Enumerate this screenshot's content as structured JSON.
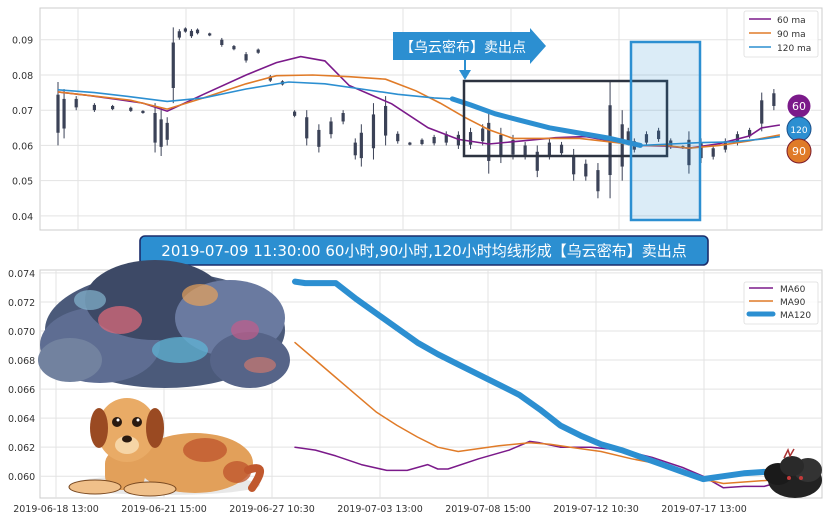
{
  "chart_data": [
    {
      "type": "candlestick",
      "title": "",
      "xlabel": "",
      "ylabel": "",
      "ylim": [
        0.036,
        0.099
      ],
      "y_ticks": [
        "0.04",
        "0.05",
        "0.06",
        "0.07",
        "0.08",
        "0.09"
      ],
      "grid": true,
      "legend": {
        "position": "top-right",
        "entries": [
          "60 ma",
          "90 ma",
          "120 ma"
        ]
      },
      "series": [
        {
          "name": "60 ma",
          "color": "#7b1a8a",
          "points": [
            [
              0,
              0.0752
            ],
            [
              5,
              0.0742
            ],
            [
              10,
              0.073
            ],
            [
              14,
              0.072
            ],
            [
              18,
              0.0697
            ],
            [
              24,
              0.0745
            ],
            [
              31,
              0.08
            ],
            [
              36,
              0.0835
            ],
            [
              40,
              0.0852
            ],
            [
              44,
              0.084
            ],
            [
              48,
              0.077
            ],
            [
              55,
              0.0718
            ],
            [
              61,
              0.065
            ],
            [
              66,
              0.0617
            ],
            [
              71,
              0.0604
            ],
            [
              76,
              0.0612
            ],
            [
              82,
              0.0622
            ],
            [
              87,
              0.0625
            ],
            [
              92,
              0.061
            ],
            [
              96,
              0.06
            ],
            [
              100,
              0.0598
            ],
            [
              104,
              0.0592
            ],
            [
              109,
              0.0605
            ],
            [
              114,
              0.0627
            ],
            [
              116,
              0.065
            ],
            [
              119,
              0.0658
            ]
          ]
        },
        {
          "name": "90 ma",
          "color": "#e07b28",
          "points": [
            [
              0,
              0.0752
            ],
            [
              6,
              0.074
            ],
            [
              12,
              0.0728
            ],
            [
              18,
              0.0703
            ],
            [
              24,
              0.0735
            ],
            [
              31,
              0.0775
            ],
            [
              36,
              0.0798
            ],
            [
              42,
              0.08
            ],
            [
              48,
              0.0795
            ],
            [
              54,
              0.0788
            ],
            [
              59,
              0.0755
            ],
            [
              63,
              0.072
            ],
            [
              67,
              0.068
            ],
            [
              71,
              0.0645
            ],
            [
              75,
              0.062
            ],
            [
              80,
              0.062
            ],
            [
              86,
              0.062
            ],
            [
              92,
              0.0608
            ],
            [
              96,
              0.06
            ],
            [
              100,
              0.06
            ],
            [
              104,
              0.0592
            ],
            [
              109,
              0.06
            ],
            [
              114,
              0.0613
            ],
            [
              116,
              0.062
            ],
            [
              119,
              0.063
            ]
          ]
        },
        {
          "name": "120 ma",
          "color": "#2c8fd1",
          "points": [
            [
              0,
              0.0758
            ],
            [
              6,
              0.075
            ],
            [
              12,
              0.0738
            ],
            [
              18,
              0.0725
            ],
            [
              24,
              0.0735
            ],
            [
              31,
              0.076
            ],
            [
              38,
              0.078
            ],
            [
              44,
              0.0775
            ],
            [
              50,
              0.076
            ],
            [
              56,
              0.0745
            ],
            [
              62,
              0.0735
            ],
            [
              65,
              0.0732
            ],
            [
              68,
              0.0715
            ],
            [
              72,
              0.069
            ],
            [
              76,
              0.0672
            ],
            [
              81,
              0.065
            ],
            [
              86,
              0.0635
            ],
            [
              91,
              0.062
            ],
            [
              96,
              0.06
            ],
            [
              101,
              0.0604
            ],
            [
              106,
              0.0608
            ],
            [
              111,
              0.061
            ],
            [
              116,
              0.0618
            ],
            [
              119,
              0.0625
            ]
          ]
        }
      ],
      "candles": [
        [
          0,
          0.078,
          0.06
        ],
        [
          1,
          0.076,
          0.062
        ],
        [
          3,
          0.074,
          0.07
        ],
        [
          6,
          0.072,
          0.0695
        ],
        [
          9,
          0.0715,
          0.07
        ],
        [
          12,
          0.071,
          0.0695
        ],
        [
          14,
          0.07,
          0.069
        ],
        [
          16,
          0.072,
          0.058
        ],
        [
          17,
          0.07,
          0.057
        ],
        [
          18,
          0.068,
          0.06
        ],
        [
          19,
          0.0935,
          0.072
        ],
        [
          20,
          0.093,
          0.09
        ],
        [
          21,
          0.0935,
          0.092
        ],
        [
          22,
          0.093,
          0.0905
        ],
        [
          23,
          0.0932,
          0.0915
        ],
        [
          25,
          0.092,
          0.091
        ],
        [
          27,
          0.0905,
          0.088
        ],
        [
          29,
          0.0885,
          0.087
        ],
        [
          31,
          0.0865,
          0.0835
        ],
        [
          33,
          0.0875,
          0.086
        ],
        [
          35,
          0.08,
          0.078
        ],
        [
          37,
          0.0785,
          0.077
        ],
        [
          39,
          0.07,
          0.068
        ],
        [
          41,
          0.07,
          0.06
        ],
        [
          43,
          0.066,
          0.058
        ],
        [
          45,
          0.068,
          0.062
        ],
        [
          47,
          0.07,
          0.066
        ],
        [
          49,
          0.062,
          0.056
        ],
        [
          50,
          0.066,
          0.054
        ],
        [
          52,
          0.072,
          0.056
        ],
        [
          54,
          0.074,
          0.06
        ],
        [
          56,
          0.064,
          0.0605
        ],
        [
          58,
          0.061,
          0.06
        ],
        [
          60,
          0.062,
          0.06
        ],
        [
          62,
          0.063,
          0.06
        ],
        [
          64,
          0.064,
          0.06
        ],
        [
          66,
          0.064,
          0.059
        ],
        [
          68,
          0.065,
          0.059
        ],
        [
          70,
          0.066,
          0.06
        ],
        [
          71,
          0.07,
          0.052
        ],
        [
          73,
          0.065,
          0.055
        ],
        [
          75,
          0.063,
          0.056
        ],
        [
          77,
          0.061,
          0.056
        ],
        [
          79,
          0.06,
          0.051
        ],
        [
          81,
          0.062,
          0.056
        ],
        [
          83,
          0.061,
          0.057
        ],
        [
          85,
          0.059,
          0.05
        ],
        [
          87,
          0.056,
          0.05
        ],
        [
          89,
          0.055,
          0.045
        ],
        [
          91,
          0.078,
          0.045
        ],
        [
          93,
          0.07,
          0.05
        ],
        [
          94,
          0.065,
          0.06
        ],
        [
          95,
          0.062,
          0.058
        ],
        [
          97,
          0.064,
          0.06
        ],
        [
          99,
          0.065,
          0.061
        ],
        [
          101,
          0.062,
          0.059
        ],
        [
          103,
          0.06,
          0.059
        ],
        [
          104,
          0.064,
          0.052
        ],
        [
          106,
          0.062,
          0.055
        ],
        [
          108,
          0.06,
          0.056
        ],
        [
          110,
          0.062,
          0.058
        ],
        [
          112,
          0.064,
          0.06
        ],
        [
          114,
          0.065,
          0.062
        ],
        [
          116,
          0.075,
          0.064
        ],
        [
          118,
          0.076,
          0.07
        ]
      ],
      "annotations": {
        "arrow_label": "【乌云密布】卖出点",
        "badges": [
          "60",
          "120",
          "90"
        ]
      }
    },
    {
      "type": "line",
      "title": "2019-07-09 11:30:00 60小时,90小时,120小时均线形成【乌云密布】卖出点",
      "xlabel": "",
      "ylabel": "",
      "ylim": [
        0.0585,
        0.0742
      ],
      "y_ticks": [
        "0.060",
        "0.062",
        "0.064",
        "0.066",
        "0.068",
        "0.070",
        "0.072",
        "0.074"
      ],
      "x_ticks": [
        "2019-06-18 13:00",
        "2019-06-21 15:00",
        "2019-06-27 10:30",
        "2019-07-03 13:00",
        "2019-07-08 15:00",
        "2019-07-12 10:30",
        "2019-07-17 13:00"
      ],
      "grid": true,
      "legend": {
        "position": "top-right",
        "entries": [
          "MA60",
          "MA90",
          "MA120"
        ]
      },
      "series": [
        {
          "name": "MA60",
          "color": "#7b1a8a",
          "points": [
            [
              0,
              0.062
            ],
            [
              4,
              0.0618
            ],
            [
              8,
              0.0614
            ],
            [
              13,
              0.0608
            ],
            [
              18,
              0.0604
            ],
            [
              22,
              0.0604
            ],
            [
              26,
              0.0608
            ],
            [
              28,
              0.0605
            ],
            [
              30,
              0.0605
            ],
            [
              36,
              0.0612
            ],
            [
              42,
              0.0618
            ],
            [
              46,
              0.0624
            ],
            [
              48,
              0.0623
            ],
            [
              52,
              0.062
            ],
            [
              58,
              0.062
            ],
            [
              64,
              0.0618
            ],
            [
              70,
              0.0613
            ],
            [
              76,
              0.0606
            ],
            [
              80,
              0.06
            ],
            [
              84,
              0.0592
            ],
            [
              88,
              0.0593
            ],
            [
              92,
              0.0593
            ],
            [
              96,
              0.0597
            ],
            [
              100,
              0.06
            ]
          ]
        },
        {
          "name": "MA90",
          "color": "#e07b28",
          "points": [
            [
              0,
              0.0692
            ],
            [
              4,
              0.068
            ],
            [
              8,
              0.0668
            ],
            [
              12,
              0.0656
            ],
            [
              16,
              0.0644
            ],
            [
              20,
              0.0635
            ],
            [
              24,
              0.0627
            ],
            [
              28,
              0.062
            ],
            [
              32,
              0.0617
            ],
            [
              36,
              0.0619
            ],
            [
              40,
              0.0621
            ],
            [
              46,
              0.0623
            ],
            [
              50,
              0.0622
            ],
            [
              54,
              0.062
            ],
            [
              60,
              0.0617
            ],
            [
              66,
              0.0612
            ],
            [
              72,
              0.0608
            ],
            [
              76,
              0.0604
            ],
            [
              80,
              0.0598
            ],
            [
              84,
              0.0595
            ],
            [
              88,
              0.0596
            ],
            [
              92,
              0.0597
            ],
            [
              96,
              0.0598
            ],
            [
              100,
              0.06
            ]
          ]
        },
        {
          "name": "MA120",
          "color": "#2c8fd1",
          "points": [
            [
              0,
              0.0734
            ],
            [
              2,
              0.0733
            ],
            [
              6,
              0.0733
            ],
            [
              8,
              0.0733
            ],
            [
              12,
              0.0722
            ],
            [
              16,
              0.0712
            ],
            [
              20,
              0.0702
            ],
            [
              24,
              0.0692
            ],
            [
              28,
              0.0684
            ],
            [
              32,
              0.0677
            ],
            [
              36,
              0.067
            ],
            [
              40,
              0.0663
            ],
            [
              44,
              0.0656
            ],
            [
              48,
              0.0646
            ],
            [
              52,
              0.0635
            ],
            [
              56,
              0.0628
            ],
            [
              60,
              0.0622
            ],
            [
              64,
              0.0618
            ],
            [
              68,
              0.0613
            ],
            [
              72,
              0.0608
            ],
            [
              76,
              0.0603
            ],
            [
              80,
              0.0598
            ],
            [
              84,
              0.06
            ],
            [
              88,
              0.0602
            ],
            [
              92,
              0.0603
            ],
            [
              96,
              0.06
            ],
            [
              100,
              0.06
            ]
          ]
        }
      ]
    }
  ],
  "icons": [
    "storm-cloud-icon",
    "dog-icon",
    "black-cloud-icon"
  ]
}
